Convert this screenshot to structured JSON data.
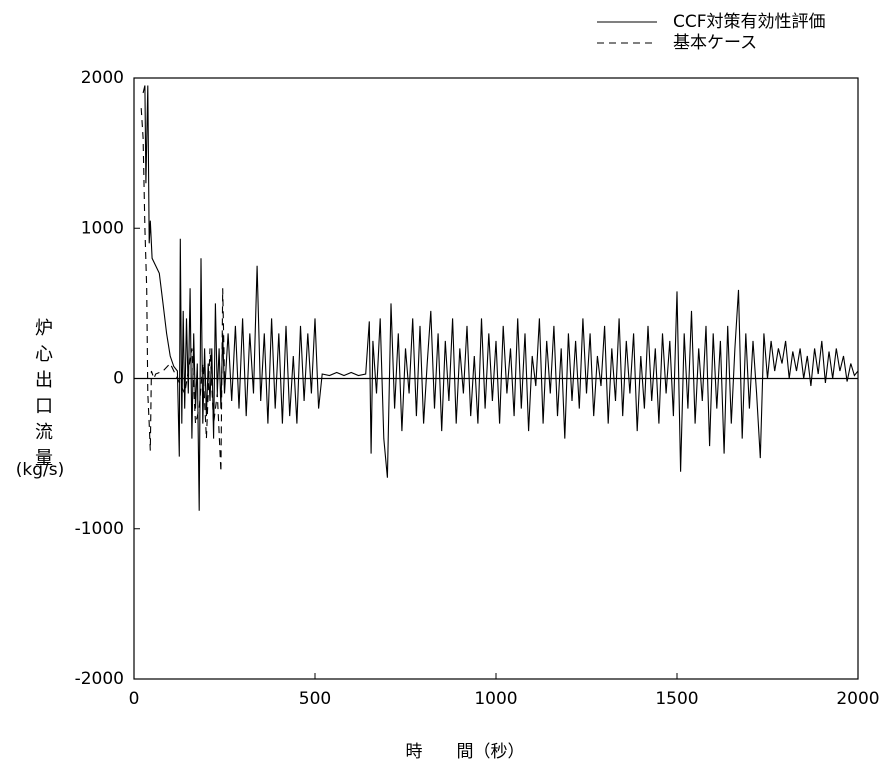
{
  "chart_data": {
    "type": "line",
    "xlabel": "時　　間（秒）",
    "ylabel": "炉心出口流量",
    "yunit": "(kg/s)",
    "xlim": [
      0,
      2000
    ],
    "ylim": [
      -2000,
      2000
    ],
    "xticks": [
      0,
      500,
      1000,
      1500,
      2000
    ],
    "yticks": [
      -2000,
      -1000,
      0,
      1000,
      2000
    ],
    "zero_line": true,
    "legend": "upper right",
    "series": [
      {
        "name": "CCF対策有効性評価",
        "color": "#000000",
        "line_style": "solid",
        "x": [
          25,
          30,
          33,
          38,
          42,
          45,
          50,
          60,
          70,
          80,
          90,
          100,
          110,
          120,
          125,
          128,
          132,
          136,
          140,
          145,
          150,
          155,
          160,
          165,
          170,
          175,
          180,
          185,
          190,
          195,
          200,
          205,
          210,
          215,
          220,
          225,
          230,
          235,
          240,
          245,
          250,
          260,
          270,
          280,
          290,
          300,
          310,
          320,
          330,
          340,
          350,
          360,
          370,
          380,
          390,
          400,
          410,
          420,
          430,
          440,
          450,
          460,
          470,
          480,
          490,
          500,
          510,
          520,
          540,
          560,
          580,
          600,
          620,
          640,
          650,
          655,
          660,
          670,
          680,
          690,
          700,
          710,
          720,
          730,
          740,
          750,
          760,
          770,
          780,
          790,
          800,
          810,
          820,
          830,
          840,
          850,
          860,
          870,
          880,
          890,
          900,
          910,
          920,
          930,
          940,
          950,
          960,
          970,
          980,
          990,
          1000,
          1010,
          1020,
          1030,
          1040,
          1050,
          1060,
          1070,
          1080,
          1090,
          1100,
          1110,
          1120,
          1130,
          1140,
          1150,
          1160,
          1170,
          1180,
          1190,
          1200,
          1210,
          1220,
          1230,
          1240,
          1250,
          1260,
          1270,
          1280,
          1290,
          1300,
          1310,
          1320,
          1330,
          1340,
          1350,
          1360,
          1370,
          1380,
          1390,
          1400,
          1410,
          1420,
          1430,
          1440,
          1450,
          1460,
          1470,
          1480,
          1490,
          1500,
          1510,
          1520,
          1530,
          1540,
          1550,
          1560,
          1570,
          1580,
          1590,
          1600,
          1610,
          1620,
          1630,
          1640,
          1650,
          1660,
          1670,
          1680,
          1690,
          1700,
          1710,
          1720,
          1730,
          1740,
          1750,
          1760,
          1770,
          1780,
          1790,
          1800,
          1810,
          1820,
          1830,
          1840,
          1850,
          1860,
          1870,
          1880,
          1890,
          1900,
          1910,
          1920,
          1930,
          1940,
          1950,
          1960,
          1970,
          1980,
          1990,
          2000
        ],
        "values": [
          1900,
          1950,
          1300,
          1950,
          900,
          1050,
          800,
          750,
          700,
          500,
          300,
          150,
          80,
          50,
          -520,
          930,
          -300,
          450,
          -200,
          400,
          -100,
          600,
          -400,
          300,
          -200,
          100,
          -880,
          800,
          -300,
          200,
          -250,
          100,
          -150,
          200,
          -400,
          500,
          -100,
          200,
          -200,
          300,
          -100,
          300,
          -150,
          350,
          -200,
          400,
          -250,
          300,
          -100,
          750,
          -150,
          300,
          -300,
          400,
          -200,
          300,
          -300,
          350,
          -250,
          150,
          -300,
          350,
          -150,
          300,
          -100,
          400,
          -200,
          30,
          20,
          40,
          20,
          40,
          20,
          30,
          380,
          -500,
          250,
          -100,
          400,
          -400,
          -660,
          500,
          -200,
          300,
          -350,
          200,
          -100,
          400,
          -250,
          350,
          -300,
          100,
          450,
          -200,
          300,
          -350,
          250,
          -150,
          400,
          -300,
          200,
          -100,
          350,
          -250,
          150,
          -300,
          400,
          -200,
          300,
          -150,
          250,
          -300,
          350,
          -100,
          200,
          -250,
          400,
          -200,
          300,
          -350,
          150,
          -50,
          400,
          -300,
          250,
          -100,
          350,
          -250,
          200,
          -400,
          300,
          -150,
          250,
          -200,
          400,
          -100,
          300,
          -250,
          150,
          -50,
          350,
          -300,
          200,
          -150,
          400,
          -250,
          250,
          -100,
          300,
          -350,
          150,
          -200,
          350,
          -150,
          200,
          -300,
          300,
          -100,
          250,
          -250,
          580,
          -620,
          300,
          -200,
          450,
          -300,
          200,
          -150,
          350,
          -450,
          300,
          -200,
          250,
          -500,
          350,
          -300,
          200,
          590,
          -400,
          300,
          -200,
          250,
          -100,
          -530,
          300,
          0,
          250,
          50,
          200,
          100,
          250,
          0,
          180,
          50,
          200,
          0,
          150,
          -50,
          200,
          30,
          250,
          -30,
          180,
          0,
          200,
          50,
          150,
          -20,
          100,
          20,
          50
        ]
      },
      {
        "name": "基本ケース",
        "color": "#000000",
        "line_style": "dashed",
        "x": [
          20,
          25,
          30,
          35,
          38,
          42,
          45,
          48,
          55,
          60,
          80,
          100,
          120,
          140,
          160,
          170,
          180,
          190,
          200,
          210,
          220,
          230,
          240,
          245,
          250
        ],
        "values": [
          1800,
          1600,
          1000,
          600,
          -100,
          -300,
          -480,
          50,
          0,
          30,
          50,
          100,
          0,
          -100,
          200,
          -300,
          -200,
          100,
          -400,
          200,
          -300,
          -100,
          -620,
          600,
          0
        ]
      }
    ]
  }
}
